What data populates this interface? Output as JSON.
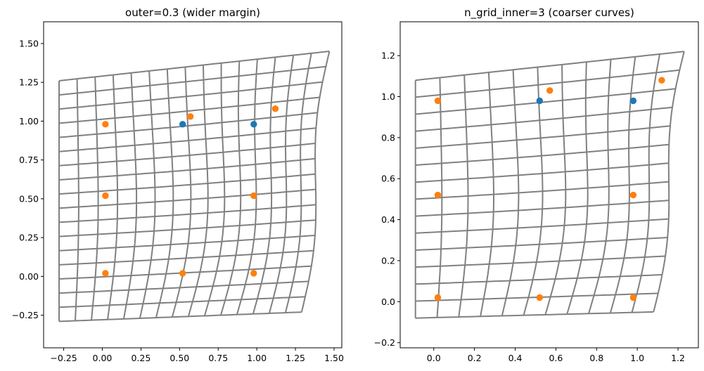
{
  "chart_data": [
    {
      "type": "scatter",
      "title": "outer=0.3 (wider margin)",
      "xlabel": "",
      "ylabel": "",
      "xlim": [
        -0.38,
        1.55
      ],
      "ylim": [
        -0.46,
        1.64
      ],
      "xticks": [
        -0.25,
        0.0,
        0.25,
        0.5,
        0.75,
        1.0,
        1.25,
        1.5
      ],
      "xtick_labels": [
        "−0.25",
        "0.00",
        "0.25",
        "0.50",
        "0.75",
        "1.00",
        "1.25",
        "1.50"
      ],
      "yticks": [
        -0.25,
        0.0,
        0.25,
        0.5,
        0.75,
        1.0,
        1.25,
        1.5
      ],
      "ytick_labels": [
        "−0.25",
        "0.00",
        "0.25",
        "0.50",
        "0.75",
        "1.00",
        "1.25",
        "1.50"
      ],
      "grid_corners": {
        "bl": [
          -0.28,
          -0.29
        ],
        "br": [
          1.29,
          -0.23
        ],
        "tl": [
          -0.28,
          1.26
        ],
        "tr": [
          1.47,
          1.45
        ]
      },
      "grid_lines": {
        "rows": 18,
        "cols": 16
      },
      "series": [
        {
          "points": [
            [
              0.52,
              0.98
            ],
            [
              0.98,
              0.98
            ]
          ]
        },
        {
          "points": [
            [
              0.02,
              0.98
            ],
            [
              0.57,
              1.03
            ],
            [
              1.12,
              1.08
            ],
            [
              0.02,
              0.52
            ],
            [
              0.98,
              0.52
            ],
            [
              0.02,
              0.02
            ],
            [
              0.52,
              0.02
            ],
            [
              0.98,
              0.02
            ]
          ]
        }
      ]
    },
    {
      "type": "scatter",
      "title": "n_grid_inner=3 (coarser curves)",
      "xlabel": "",
      "ylabel": "",
      "xlim": [
        -0.165,
        1.3
      ],
      "ylim": [
        -0.225,
        1.365
      ],
      "xticks": [
        0.0,
        0.2,
        0.4,
        0.6,
        0.8,
        1.0,
        1.2
      ],
      "xtick_labels": [
        "0.0",
        "0.2",
        "0.4",
        "0.6",
        "0.8",
        "1.0",
        "1.2"
      ],
      "yticks": [
        -0.2,
        0.0,
        0.2,
        0.4,
        0.6,
        0.8,
        1.0,
        1.2
      ],
      "ytick_labels": [
        "−0.2",
        "0.0",
        "0.2",
        "0.4",
        "0.6",
        "0.8",
        "1.0",
        "1.2"
      ],
      "grid_corners": {
        "bl": [
          -0.09,
          -0.08
        ],
        "br": [
          1.08,
          -0.05
        ],
        "tl": [
          -0.09,
          1.08
        ],
        "tr": [
          1.23,
          1.22
        ]
      },
      "grid_lines": {
        "rows": 15,
        "cols": 12
      },
      "series": [
        {
          "points": [
            [
              0.52,
              0.98
            ],
            [
              0.98,
              0.98
            ]
          ]
        },
        {
          "points": [
            [
              0.02,
              0.98
            ],
            [
              0.57,
              1.03
            ],
            [
              1.12,
              1.08
            ],
            [
              0.02,
              0.52
            ],
            [
              0.98,
              0.52
            ],
            [
              0.02,
              0.02
            ],
            [
              0.52,
              0.02
            ],
            [
              0.98,
              0.02
            ]
          ]
        }
      ]
    }
  ],
  "colors": {
    "series": [
      "#1f77b4",
      "#ff7f0e"
    ],
    "grid": "#808080",
    "axes": "#000000"
  }
}
